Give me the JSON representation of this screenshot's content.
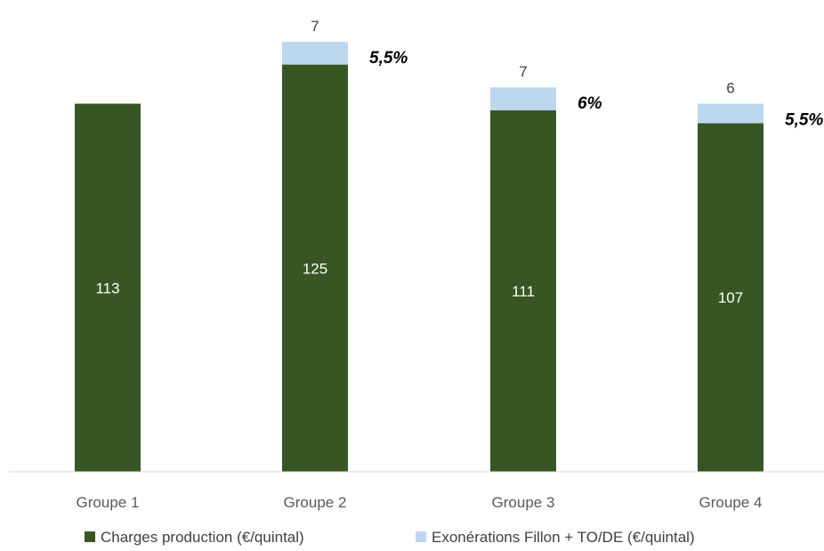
{
  "chart_data": {
    "type": "bar",
    "stacked": true,
    "categories": [
      "Groupe 1",
      "Groupe 2",
      "Groupe 3",
      "Groupe 4"
    ],
    "series": [
      {
        "name": "Charges production (€/quintal)",
        "values": [
          113,
          125,
          111,
          107
        ],
        "color": "#375623"
      },
      {
        "name": "Exonérations Fillon + TO/DE (€/quintal)",
        "values": [
          null,
          7,
          7,
          6
        ],
        "color": "#bdd7ee"
      }
    ],
    "data_labels": {
      "inside": [
        "113",
        "125",
        "111",
        "107"
      ],
      "top": [
        "",
        "7",
        "7",
        "6"
      ]
    },
    "annotations": [
      "",
      "5,5%",
      "6%",
      "5,5%"
    ],
    "ylim": [
      0,
      135
    ],
    "grid": false,
    "legend_position": "bottom"
  }
}
